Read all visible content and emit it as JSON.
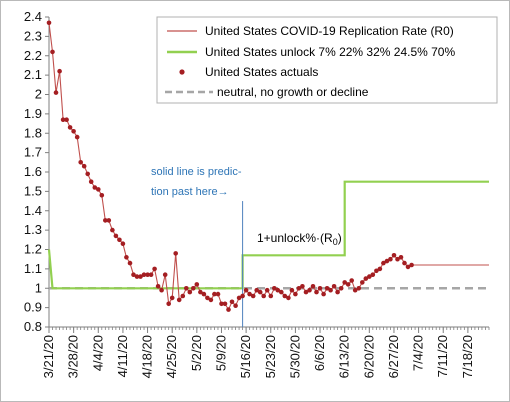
{
  "chart_data": {
    "type": "line",
    "title": "",
    "xlabel": "",
    "ylabel": "",
    "ylim": [
      0.8,
      2.4
    ],
    "yticks": [
      "0.8",
      "0.9",
      "1",
      "1.1",
      "1.2",
      "1.3",
      "1.4",
      "1.5",
      "1.6",
      "1.7",
      "1.8",
      "1.9",
      "2",
      "2.1",
      "2.2",
      "2.3",
      "2.4"
    ],
    "x_start": "2020-03-21",
    "x_end": "2020-07-24",
    "xticks": [
      "3/21/20",
      "3/28/20",
      "4/4/20",
      "4/11/20",
      "4/18/20",
      "4/25/20",
      "5/2/20",
      "5/9/20",
      "5/16/20",
      "5/23/20",
      "5/30/20",
      "6/6/20",
      "6/13/20",
      "6/20/20",
      "6/27/20",
      "7/4/20",
      "7/11/20",
      "7/18/20"
    ],
    "legend": {
      "placement": "top-right",
      "entries": [
        "United States COVID-19 Replication Rate (R0)",
        "United States unlock 7% 22% 32% 24.5% 70%",
        "United States actuals",
        "neutral, no growth or decline"
      ]
    },
    "annotations": {
      "prediction_note_line1": "solid line is predic-",
      "prediction_note_line2": "tion past here→",
      "formula": "1+unlock%·(R",
      "formula_sub": "0",
      "formula_close": ")"
    },
    "prediction_start": "2020-05-15",
    "colors": {
      "replication_rate": "#c0504d",
      "unlock": "#92d050",
      "actuals": "#a41e22",
      "neutral": "#a6a6a6",
      "prediction_marker": "#4f81bd",
      "annotation": "#2e75b6"
    },
    "series": [
      {
        "name": "United States COVID-19 Replication Rate (R0)",
        "x": [
          "2020-03-21",
          "2020-03-22",
          "2020-03-23",
          "2020-03-24",
          "2020-03-25",
          "2020-03-26",
          "2020-03-27",
          "2020-03-28",
          "2020-03-29",
          "2020-03-30",
          "2020-03-31",
          "2020-04-01",
          "2020-04-02",
          "2020-04-03",
          "2020-04-04",
          "2020-04-05",
          "2020-04-06",
          "2020-04-07",
          "2020-04-08",
          "2020-04-09",
          "2020-04-10",
          "2020-04-11",
          "2020-04-12",
          "2020-04-13",
          "2020-04-14",
          "2020-04-15",
          "2020-04-16",
          "2020-04-17",
          "2020-04-18",
          "2020-04-19",
          "2020-04-20",
          "2020-04-21",
          "2020-04-22",
          "2020-04-23",
          "2020-04-24",
          "2020-04-25",
          "2020-04-26",
          "2020-04-27",
          "2020-04-28",
          "2020-04-29",
          "2020-04-30",
          "2020-05-01",
          "2020-05-02",
          "2020-05-03",
          "2020-05-04",
          "2020-05-05",
          "2020-05-06",
          "2020-05-07",
          "2020-05-08",
          "2020-05-09",
          "2020-05-10",
          "2020-05-11",
          "2020-05-12",
          "2020-05-13",
          "2020-05-14",
          "2020-05-15",
          "2020-05-16",
          "2020-05-17",
          "2020-05-18",
          "2020-05-19",
          "2020-05-20",
          "2020-05-21",
          "2020-05-22",
          "2020-05-23",
          "2020-05-24",
          "2020-05-25",
          "2020-05-26",
          "2020-05-27",
          "2020-05-28",
          "2020-05-29",
          "2020-05-30",
          "2020-05-31",
          "2020-06-01",
          "2020-06-02",
          "2020-06-03",
          "2020-06-04",
          "2020-06-05",
          "2020-06-06",
          "2020-06-07",
          "2020-06-08",
          "2020-06-09",
          "2020-06-10",
          "2020-06-11",
          "2020-06-12",
          "2020-06-13",
          "2020-06-14",
          "2020-06-15",
          "2020-06-16",
          "2020-06-17",
          "2020-06-18",
          "2020-06-19",
          "2020-06-20",
          "2020-06-21",
          "2020-06-22",
          "2020-06-23",
          "2020-06-24",
          "2020-06-25",
          "2020-06-26",
          "2020-06-27",
          "2020-06-28",
          "2020-06-29",
          "2020-06-30",
          "2020-07-01",
          "2020-07-02",
          "2020-07-24"
        ],
        "values": [
          2.37,
          2.22,
          2.01,
          2.12,
          1.87,
          1.87,
          1.83,
          1.81,
          1.78,
          1.65,
          1.63,
          1.59,
          1.55,
          1.52,
          1.51,
          1.48,
          1.35,
          1.35,
          1.3,
          1.27,
          1.25,
          1.23,
          1.16,
          1.13,
          1.07,
          1.06,
          1.06,
          1.07,
          1.07,
          1.07,
          1.1,
          1.01,
          0.99,
          1.07,
          0.92,
          0.95,
          1.18,
          0.94,
          0.96,
          1.0,
          0.98,
          1.0,
          1.02,
          0.98,
          0.97,
          0.95,
          0.94,
          0.97,
          0.97,
          0.92,
          0.92,
          0.89,
          0.93,
          0.91,
          0.95,
          0.96,
          0.99,
          0.97,
          0.96,
          0.99,
          0.98,
          0.96,
          0.99,
          0.96,
          1.0,
          0.99,
          0.98,
          0.96,
          0.95,
          0.99,
          0.97,
          1.0,
          1.01,
          0.98,
          0.99,
          1.01,
          0.98,
          1.0,
          0.97,
          1.0,
          0.99,
          1.01,
          0.98,
          1.0,
          1.03,
          1.02,
          1.04,
          0.99,
          1.0,
          1.03,
          1.05,
          1.06,
          1.07,
          1.09,
          1.1,
          1.13,
          1.14,
          1.15,
          1.17,
          1.15,
          1.16,
          1.13,
          1.11,
          1.12,
          1.12
        ]
      },
      {
        "name": "United States unlock 7% 22% 32% 24.5% 70%",
        "x": [
          "2020-03-21",
          "2020-03-22",
          "2020-03-22",
          "2020-05-15",
          "2020-05-15",
          "2020-06-13",
          "2020-06-13",
          "2020-07-24"
        ],
        "values": [
          1.2,
          1.0,
          1.0,
          1.0,
          1.17,
          1.17,
          1.55,
          1.55
        ]
      },
      {
        "name": "United States actuals",
        "x": [
          "2020-03-21",
          "2020-03-22",
          "2020-03-23",
          "2020-03-24",
          "2020-03-25",
          "2020-03-26",
          "2020-03-27",
          "2020-03-28",
          "2020-03-29",
          "2020-03-30",
          "2020-03-31",
          "2020-04-01",
          "2020-04-02",
          "2020-04-03",
          "2020-04-04",
          "2020-04-05",
          "2020-04-06",
          "2020-04-07",
          "2020-04-08",
          "2020-04-09",
          "2020-04-10",
          "2020-04-11",
          "2020-04-12",
          "2020-04-13",
          "2020-04-14",
          "2020-04-15",
          "2020-04-16",
          "2020-04-17",
          "2020-04-18",
          "2020-04-19",
          "2020-04-20",
          "2020-04-21",
          "2020-04-22",
          "2020-04-23",
          "2020-04-24",
          "2020-04-25",
          "2020-04-26",
          "2020-04-27",
          "2020-04-28",
          "2020-04-29",
          "2020-04-30",
          "2020-05-01",
          "2020-05-02",
          "2020-05-03",
          "2020-05-04",
          "2020-05-05",
          "2020-05-06",
          "2020-05-07",
          "2020-05-08",
          "2020-05-09",
          "2020-05-10",
          "2020-05-11",
          "2020-05-12",
          "2020-05-13",
          "2020-05-14",
          "2020-05-15",
          "2020-05-16",
          "2020-05-17",
          "2020-05-18",
          "2020-05-19",
          "2020-05-20",
          "2020-05-21",
          "2020-05-22",
          "2020-05-23",
          "2020-05-24",
          "2020-05-25",
          "2020-05-26",
          "2020-05-27",
          "2020-05-28",
          "2020-05-29",
          "2020-05-30",
          "2020-05-31",
          "2020-06-01",
          "2020-06-02",
          "2020-06-03",
          "2020-06-04",
          "2020-06-05",
          "2020-06-06",
          "2020-06-07",
          "2020-06-08",
          "2020-06-09",
          "2020-06-10",
          "2020-06-11",
          "2020-06-12",
          "2020-06-13",
          "2020-06-14",
          "2020-06-15",
          "2020-06-16",
          "2020-06-17",
          "2020-06-18",
          "2020-06-19",
          "2020-06-20",
          "2020-06-21",
          "2020-06-22",
          "2020-06-23",
          "2020-06-24",
          "2020-06-25",
          "2020-06-26",
          "2020-06-27",
          "2020-06-28",
          "2020-06-29",
          "2020-06-30",
          "2020-07-01",
          "2020-07-02"
        ],
        "values": [
          2.37,
          2.22,
          2.01,
          2.12,
          1.87,
          1.87,
          1.83,
          1.81,
          1.78,
          1.65,
          1.63,
          1.59,
          1.55,
          1.52,
          1.51,
          1.48,
          1.35,
          1.35,
          1.3,
          1.27,
          1.25,
          1.23,
          1.16,
          1.13,
          1.07,
          1.06,
          1.06,
          1.07,
          1.07,
          1.07,
          1.1,
          1.01,
          0.99,
          1.07,
          0.92,
          0.95,
          1.18,
          0.94,
          0.96,
          1.0,
          0.98,
          1.0,
          1.02,
          0.98,
          0.97,
          0.95,
          0.94,
          0.97,
          0.97,
          0.92,
          0.92,
          0.89,
          0.93,
          0.91,
          0.95,
          0.96,
          0.99,
          0.97,
          0.96,
          0.99,
          0.98,
          0.96,
          0.99,
          0.96,
          1.0,
          0.99,
          0.98,
          0.96,
          0.95,
          0.99,
          0.97,
          1.0,
          1.01,
          0.98,
          0.99,
          1.01,
          0.98,
          1.0,
          0.97,
          1.0,
          0.99,
          1.01,
          0.98,
          1.0,
          1.03,
          1.02,
          1.04,
          0.99,
          1.0,
          1.03,
          1.05,
          1.06,
          1.07,
          1.09,
          1.1,
          1.13,
          1.14,
          1.15,
          1.17,
          1.15,
          1.16,
          1.13,
          1.11,
          1.12
        ]
      },
      {
        "name": "neutral, no growth or decline",
        "x": [
          "2020-03-21",
          "2020-07-24"
        ],
        "values": [
          1.0,
          1.0
        ]
      }
    ],
    "grid": false
  }
}
